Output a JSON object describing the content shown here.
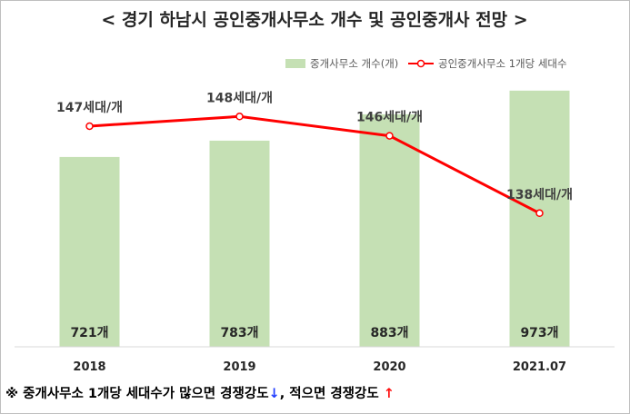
{
  "chart_data": {
    "type": "bar",
    "title": "< 경기 하남시 공인중개사무소 개수 및 공인중개사 전망 >",
    "categories": [
      "2018",
      "2019",
      "2020",
      "2021.07"
    ],
    "series": [
      {
        "name": "중개사무소 개수(개)",
        "type": "bar",
        "values": [
          721,
          783,
          883,
          973
        ],
        "labels": [
          "721개",
          "783개",
          "883개",
          "973개"
        ],
        "color": "#c5e0b4"
      },
      {
        "name": "공인중개사무소 1개당 세대수",
        "type": "line",
        "values": [
          147,
          148,
          146,
          138
        ],
        "labels": [
          "147세대/개",
          "148세대/개",
          "146세대/개",
          "138세대/개"
        ],
        "color": "#ff0000"
      }
    ],
    "legend_position": "top-right",
    "grid": false
  },
  "note": {
    "prefix": "※ 중개사무소 1개당 세대수가 많으면 경쟁강도",
    "arrow1": "↓",
    "middle": ", 적으면 경쟁강도",
    "arrow2": "↑"
  }
}
